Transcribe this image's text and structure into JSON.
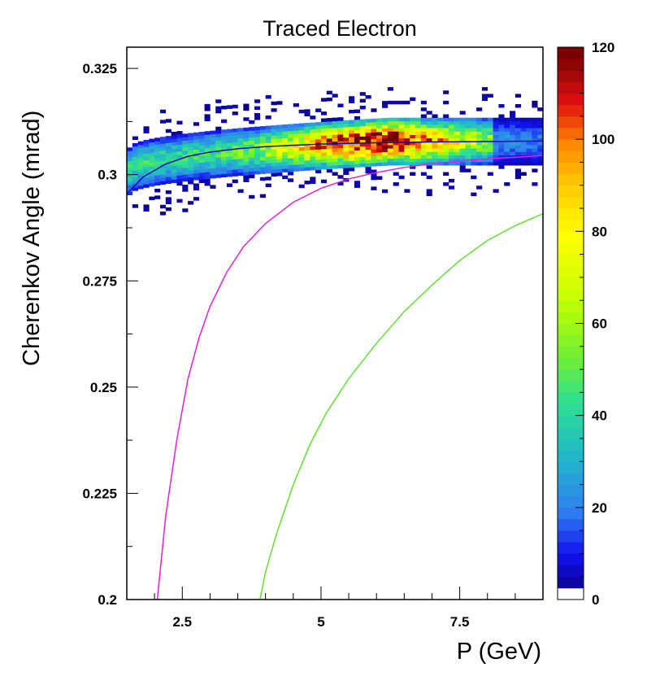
{
  "chart_data": {
    "type": "heatmap",
    "title": "Traced Electron",
    "xlabel": "P (GeV)",
    "ylabel": "Cherenkov Angle (mrad)",
    "xlim": [
      1.5,
      9.0
    ],
    "ylim": [
      0.2,
      0.33
    ],
    "x_ticks": [
      {
        "value": 2.5,
        "label": "2.5"
      },
      {
        "value": 5,
        "label": "5"
      },
      {
        "value": 7.5,
        "label": "7.5"
      }
    ],
    "y_ticks": [
      {
        "value": 0.2,
        "label": "0.2"
      },
      {
        "value": 0.225,
        "label": "0.225"
      },
      {
        "value": 0.25,
        "label": "0.25"
      },
      {
        "value": 0.275,
        "label": "0.275"
      },
      {
        "value": 0.3,
        "label": "0.3"
      },
      {
        "value": 0.325,
        "label": "0.325"
      }
    ],
    "colorbar": {
      "range": [
        0,
        120
      ],
      "ticks": [
        {
          "value": 0,
          "label": "0"
        },
        {
          "value": 20,
          "label": "20"
        },
        {
          "value": 40,
          "label": "40"
        },
        {
          "value": 60,
          "label": "60"
        },
        {
          "value": 80,
          "label": "80"
        },
        {
          "value": 100,
          "label": "100"
        },
        {
          "value": 120,
          "label": "120"
        }
      ]
    },
    "histogram": {
      "x_range": [
        1.5,
        9.0
      ],
      "band_center": [
        0.3005,
        0.3075
      ],
      "band_halfwidth": 0.0045,
      "peak_count": 120
    },
    "curves": [
      {
        "color": "#1010a0",
        "points": [
          [
            1.5,
            0.2955
          ],
          [
            1.8,
            0.2995
          ],
          [
            2.2,
            0.3025
          ],
          [
            2.6,
            0.3043
          ],
          [
            3.0,
            0.3053
          ],
          [
            3.5,
            0.3061
          ],
          [
            4.0,
            0.3066
          ],
          [
            5.0,
            0.3072
          ],
          [
            6.0,
            0.3075
          ],
          [
            7.0,
            0.3077
          ],
          [
            8.0,
            0.3078
          ],
          [
            9.0,
            0.3079
          ]
        ]
      },
      {
        "color": "#e020e0",
        "points": [
          [
            2.05,
            0.2
          ],
          [
            2.2,
            0.2195
          ],
          [
            2.4,
            0.2375
          ],
          [
            2.6,
            0.2518
          ],
          [
            2.8,
            0.2615
          ],
          [
            3.0,
            0.269
          ],
          [
            3.3,
            0.277
          ],
          [
            3.6,
            0.283
          ],
          [
            4.0,
            0.2885
          ],
          [
            4.5,
            0.2935
          ],
          [
            5.0,
            0.2968
          ],
          [
            5.5,
            0.299
          ],
          [
            6.0,
            0.3005
          ],
          [
            6.5,
            0.3017
          ],
          [
            7.0,
            0.3026
          ],
          [
            7.5,
            0.3032
          ],
          [
            8.0,
            0.3037
          ],
          [
            8.5,
            0.3041
          ],
          [
            9.0,
            0.3045
          ]
        ]
      },
      {
        "color": "#60e030",
        "points": [
          [
            3.9,
            0.2
          ],
          [
            4.0,
            0.2065
          ],
          [
            4.2,
            0.2155
          ],
          [
            4.5,
            0.227
          ],
          [
            4.8,
            0.2365
          ],
          [
            5.1,
            0.244
          ],
          [
            5.5,
            0.252
          ],
          [
            6.0,
            0.2603
          ],
          [
            6.5,
            0.2678
          ],
          [
            7.0,
            0.274
          ],
          [
            7.5,
            0.2798
          ],
          [
            8.0,
            0.2845
          ],
          [
            8.5,
            0.288
          ],
          [
            9.0,
            0.2908
          ]
        ]
      }
    ]
  }
}
